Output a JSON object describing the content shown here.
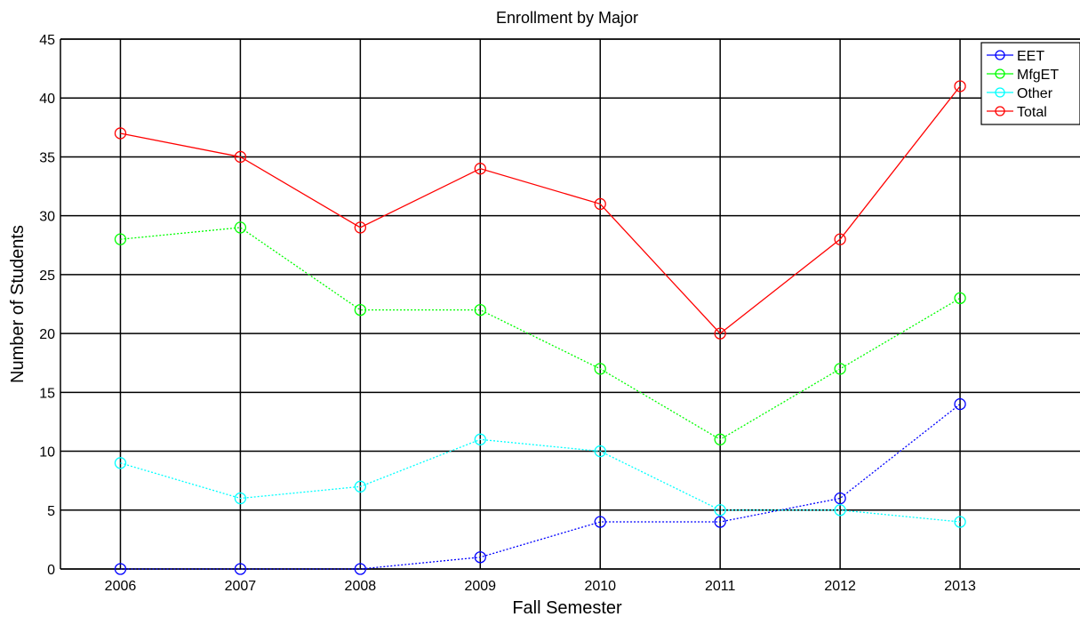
{
  "chart_data": {
    "type": "line",
    "title": "Enrollment by Major",
    "xlabel": "Fall Semester",
    "ylabel": "Number of Students",
    "x": [
      "2006",
      "2007",
      "2008",
      "2009",
      "2010",
      "2011",
      "2012",
      "2013"
    ],
    "xlim": [
      2005.5,
      2014
    ],
    "ylim": [
      0,
      45
    ],
    "yticks": [
      0,
      5,
      10,
      15,
      20,
      25,
      30,
      35,
      40,
      45
    ],
    "grid": true,
    "legend_position": "top-right",
    "marker": "circle",
    "series": [
      {
        "name": "EET",
        "color": "#0000ff",
        "style": "dotted",
        "values": [
          0,
          0,
          0,
          1,
          4,
          4,
          6,
          14
        ]
      },
      {
        "name": "MfgET",
        "color": "#00ff00",
        "style": "dotted",
        "values": [
          28,
          29,
          22,
          22,
          17,
          11,
          17,
          23
        ]
      },
      {
        "name": "Other",
        "color": "#00ffff",
        "style": "dotted",
        "values": [
          9,
          6,
          7,
          11,
          10,
          5,
          5,
          4
        ]
      },
      {
        "name": "Total",
        "color": "#ff0000",
        "style": "solid",
        "values": [
          37,
          35,
          29,
          34,
          31,
          20,
          28,
          41
        ]
      }
    ]
  }
}
